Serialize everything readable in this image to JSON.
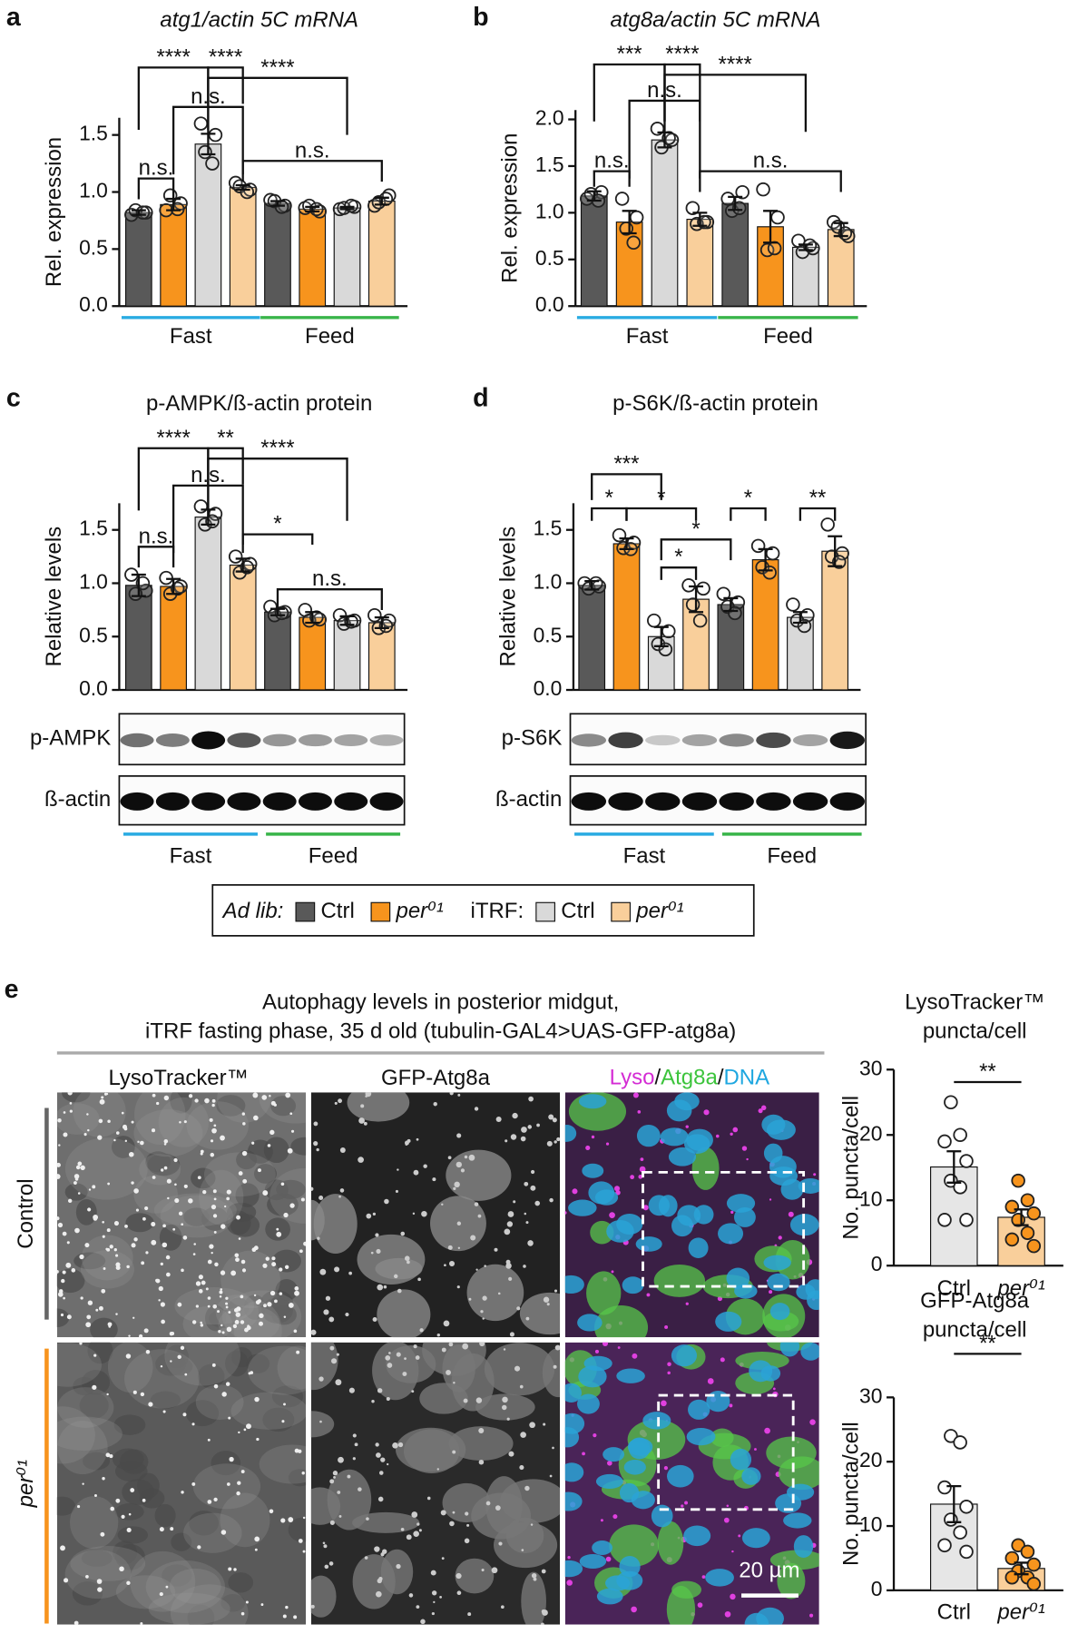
{
  "panel_labels": [
    "a",
    "b",
    "c",
    "d",
    "e"
  ],
  "chart_data": [
    {
      "type": "bar",
      "title": "atg1/actin 5C mRNA",
      "y_label": "Rel. expression",
      "ylim": [
        0,
        1.65
      ],
      "yticks": [
        {
          "value": 0,
          "label": "0.0"
        },
        0.5,
        {
          "value": 1,
          "label": "1.0"
        },
        1.5
      ],
      "categories": [
        null,
        null,
        null,
        null,
        null,
        null,
        null,
        null
      ],
      "colors": [
        "#595959",
        "#f7941d",
        "#d9d9d9",
        "#f9cf9b",
        "#595959",
        "#f7941d",
        "#d9d9d9",
        "#f9cf9b"
      ],
      "values": [
        0.82,
        0.89,
        1.42,
        1.04,
        0.9,
        0.85,
        0.86,
        0.92
      ],
      "errors": [
        0.02,
        0.05,
        0.09,
        0.02,
        0.02,
        0.02,
        0.01,
        0.03
      ],
      "points": [
        [
          0.8,
          0.82,
          0.84,
          0.82
        ],
        [
          0.84,
          0.9,
          0.97,
          0.85
        ],
        [
          1.6,
          1.5,
          1.35,
          1.25
        ],
        [
          1.08,
          1.02,
          1.05,
          1.0
        ],
        [
          0.93,
          0.88,
          0.92,
          0.87
        ],
        [
          0.86,
          0.83,
          0.88,
          0.85
        ],
        [
          0.85,
          0.87,
          0.86,
          0.88
        ],
        [
          0.88,
          0.97,
          0.91,
          0.94
        ]
      ],
      "annotations": [
        "****",
        "****",
        "****",
        "n.s.",
        "n.s.",
        "n.s."
      ],
      "groups": [
        {
          "label": "Fast",
          "color": "#29abe2"
        },
        {
          "label": "Feed",
          "color": "#39b54a"
        }
      ]
    },
    {
      "type": "bar",
      "title": "atg8a/actin 5C mRNA",
      "y_label": "Rel. expression",
      "ylim": [
        0,
        2.1
      ],
      "yticks": [
        {
          "value": 0,
          "label": "0.0"
        },
        0.5,
        {
          "value": 1,
          "label": "1.0"
        },
        1.5,
        {
          "value": 2,
          "label": "2.0"
        }
      ],
      "categories": [
        null,
        null,
        null,
        null,
        null,
        null,
        null,
        null
      ],
      "colors": [
        "#595959",
        "#f7941d",
        "#d9d9d9",
        "#f9cf9b",
        "#595959",
        "#f7941d",
        "#d9d9d9",
        "#f9cf9b"
      ],
      "values": [
        1.18,
        0.9,
        1.78,
        0.93,
        1.1,
        0.85,
        0.63,
        0.82
      ],
      "errors": [
        0.05,
        0.12,
        0.08,
        0.07,
        0.07,
        0.17,
        0.03,
        0.07
      ],
      "points": [
        [
          1.15,
          1.22,
          1.2,
          1.13
        ],
        [
          1.15,
          0.95,
          0.83,
          0.68
        ],
        [
          1.9,
          1.78,
          1.7,
          1.8
        ],
        [
          1.05,
          0.9,
          0.88,
          0.9
        ],
        [
          1.15,
          1.22,
          1.02,
          1.05
        ],
        [
          1.25,
          0.95,
          0.6,
          0.62
        ],
        [
          0.7,
          0.62,
          0.58,
          0.65
        ],
        [
          0.9,
          0.75,
          0.85,
          0.78
        ]
      ],
      "annotations": [
        "***",
        "****",
        "****",
        "n.s.",
        "n.s.",
        "n.s."
      ],
      "groups": [
        {
          "label": "Fast",
          "color": "#29abe2"
        },
        {
          "label": "Feed",
          "color": "#39b54a"
        }
      ]
    },
    {
      "type": "bar",
      "title": "p-AMPK/ß-actin protein",
      "y_label": "Relative levels",
      "ylim": [
        0,
        1.75
      ],
      "yticks": [
        {
          "value": 0,
          "label": "0.0"
        },
        0.5,
        {
          "value": 1,
          "label": "1.0"
        },
        1.5
      ],
      "categories": [
        null,
        null,
        null,
        null,
        null,
        null,
        null,
        null
      ],
      "colors": [
        "#595959",
        "#f7941d",
        "#d9d9d9",
        "#f9cf9b",
        "#595959",
        "#f7941d",
        "#d9d9d9",
        "#f9cf9b"
      ],
      "values": [
        0.98,
        0.97,
        1.62,
        1.17,
        0.73,
        0.68,
        0.65,
        0.63
      ],
      "errors": [
        0.1,
        0.07,
        0.07,
        0.06,
        0.03,
        0.05,
        0.04,
        0.05
      ],
      "points": [
        [
          1.08,
          0.93,
          0.9,
          1.0
        ],
        [
          1.05,
          0.97,
          0.9,
          0.95
        ],
        [
          1.72,
          1.65,
          1.55,
          1.58
        ],
        [
          1.25,
          1.18,
          1.1,
          1.15
        ],
        [
          0.78,
          0.73,
          0.7,
          0.72
        ],
        [
          0.75,
          0.66,
          0.65,
          0.68
        ],
        [
          0.7,
          0.65,
          0.62,
          0.64
        ],
        [
          0.7,
          0.65,
          0.58,
          0.6
        ]
      ],
      "annotations": [
        "****",
        "**",
        "****",
        "n.s.",
        "n.s.",
        "*",
        "n.s."
      ],
      "blot_labels": [
        "p-AMPK",
        "ß-actin"
      ],
      "groups": [
        {
          "label": "Fast",
          "color": "#29abe2"
        },
        {
          "label": "Feed",
          "color": "#39b54a"
        }
      ]
    },
    {
      "type": "bar",
      "title": "p-S6K/ß-actin protein",
      "y_label": "Relative levels",
      "ylim": [
        0,
        1.75
      ],
      "yticks": [
        {
          "value": 0,
          "label": "0.0"
        },
        0.5,
        {
          "value": 1,
          "label": "1.0"
        },
        1.5
      ],
      "categories": [
        null,
        null,
        null,
        null,
        null,
        null,
        null,
        null
      ],
      "colors": [
        "#595959",
        "#f7941d",
        "#d9d9d9",
        "#f9cf9b",
        "#595959",
        "#f7941d",
        "#d9d9d9",
        "#f9cf9b"
      ],
      "values": [
        0.98,
        1.37,
        0.5,
        0.85,
        0.8,
        1.22,
        0.68,
        1.3
      ],
      "errors": [
        0.04,
        0.05,
        0.09,
        0.12,
        0.06,
        0.1,
        0.05,
        0.14
      ],
      "points": [
        [
          1.0,
          0.97,
          0.95,
          1.0
        ],
        [
          1.45,
          1.38,
          1.33,
          1.32
        ],
        [
          0.65,
          0.55,
          0.43,
          0.38
        ],
        [
          0.98,
          0.95,
          0.8,
          0.65
        ],
        [
          0.9,
          0.82,
          0.78,
          0.72
        ],
        [
          1.35,
          1.28,
          1.15,
          1.1
        ],
        [
          0.8,
          0.7,
          0.65,
          0.6
        ],
        [
          1.55,
          1.28,
          1.25,
          1.2
        ]
      ],
      "annotations": [
        "***",
        "*",
        "*",
        "*",
        "*",
        "*",
        "**"
      ],
      "blot_labels": [
        "p-S6K",
        "ß-actin"
      ],
      "groups": [
        {
          "label": "Fast",
          "color": "#29abe2"
        },
        {
          "label": "Feed",
          "color": "#39b54a"
        }
      ]
    },
    {
      "type": "bar",
      "title": [
        "LysoTracker™",
        "puncta/cell"
      ],
      "y_label": "No. puncta/cell",
      "ylim": [
        0,
        30
      ],
      "yticks": [
        0,
        10,
        20,
        30
      ],
      "categories": [
        "Ctrl",
        "per⁰¹"
      ],
      "colors": [
        "#e6e6e6",
        "#f9cf9b"
      ],
      "values": [
        15.1,
        7.4
      ],
      "errors": [
        2.4,
        1.2
      ],
      "points": [
        [
          25,
          20,
          19,
          16,
          13,
          12,
          7,
          7
        ],
        [
          13,
          10,
          9,
          8,
          7,
          5,
          4,
          3
        ]
      ],
      "annotations": [
        "**"
      ]
    },
    {
      "type": "bar",
      "title": [
        "GFP-Atg8a",
        "puncta/cell"
      ],
      "y_label": "No. puncta/cell",
      "ylim": [
        0,
        30
      ],
      "yticks": [
        0,
        10,
        20,
        30
      ],
      "categories": [
        "Ctrl",
        "per⁰¹"
      ],
      "colors": [
        "#e6e6e6",
        "#f9cf9b"
      ],
      "values": [
        13.4,
        3.4
      ],
      "errors": [
        2.8,
        0.9
      ],
      "points": [
        [
          24,
          23,
          16,
          13,
          11,
          9,
          7,
          6
        ],
        [
          7,
          6,
          5,
          4,
          3,
          2,
          2,
          1
        ]
      ],
      "annotations": [
        "**"
      ]
    }
  ],
  "legend": {
    "sections": [
      {
        "title": "Ad lib:",
        "items": [
          {
            "label": "Ctrl",
            "color": "#595959"
          },
          {
            "label": "per⁰¹",
            "color": "#f7941d"
          }
        ]
      },
      {
        "title": "iTRF:",
        "items": [
          {
            "label": "Ctrl",
            "color": "#d9d9d9"
          },
          {
            "label": "per⁰¹",
            "color": "#f9cf9b"
          }
        ]
      }
    ]
  },
  "panel_e": {
    "title_lines": [
      "Autophagy levels in posterior midgut,",
      "iTRF fasting phase, 35 d old (tubulin-GAL4>UAS-GFP-atg8a)"
    ],
    "columns": [
      "LysoTracker™",
      "GFP-Atg8a"
    ],
    "merge_parts": [
      {
        "text": "Lyso",
        "color": "#d42cd4"
      },
      {
        "text": "/",
        "color": "#111111"
      },
      {
        "text": "Atg8a",
        "color": "#3cc43c"
      },
      {
        "text": "/",
        "color": "#111111"
      },
      {
        "text": "DNA",
        "color": "#1ea7e0"
      }
    ],
    "rows": [
      "Control",
      "per⁰¹"
    ],
    "scale_bar": "20 µm"
  }
}
